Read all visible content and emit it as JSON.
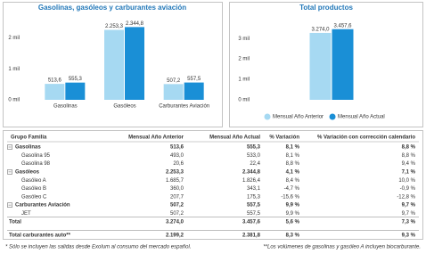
{
  "chart_data": [
    {
      "type": "bar",
      "title": "Gasolinas, gasóleos y carburantes aviación",
      "categories": [
        "Gasolinas",
        "Gasóleos",
        "Carburantes Aviación"
      ],
      "series": [
        {
          "color": "#a6d9f2",
          "values": [
            513.6,
            2253.3,
            507.2
          ],
          "value_labels": [
            "513,6",
            "2.253,3",
            "507,2"
          ]
        },
        {
          "color": "#1a8fd6",
          "values": [
            555.3,
            2344.8,
            557.5
          ],
          "value_labels": [
            "555,3",
            "2.344,8",
            "557,5"
          ]
        }
      ],
      "ylim": [
        0,
        2700
      ],
      "yticks": [
        {
          "value": 0,
          "label": "0 mil"
        },
        {
          "value": 1000,
          "label": "1 mil"
        },
        {
          "value": 2000,
          "label": "2 mil"
        }
      ]
    },
    {
      "type": "bar",
      "title": "Total productos",
      "categories": [
        null
      ],
      "series": [
        {
          "name": "Mensual Año Anterior",
          "color": "#a6d9f2",
          "values": [
            3274.0
          ],
          "value_labels": [
            "3.274,0"
          ]
        },
        {
          "name": "Mensual Año Actual",
          "color": "#1a8fd6",
          "values": [
            3457.6
          ],
          "value_labels": [
            "3.457,6"
          ]
        }
      ],
      "ylim": [
        0,
        4100
      ],
      "yticks": [
        {
          "value": 0,
          "label": "0 mil"
        },
        {
          "value": 1000,
          "label": "1 mil"
        },
        {
          "value": 2000,
          "label": "2 mil"
        },
        {
          "value": 3000,
          "label": "3 mil"
        }
      ],
      "legend": "bottom"
    }
  ],
  "table": {
    "header": [
      "Grupo Familia",
      "Mensual Año Anterior",
      "Mensual Año Actual",
      "% Variación",
      "% Variación con corrección calendario"
    ],
    "rows": [
      {
        "style": "group",
        "cells": [
          "Gasolinas",
          "513,6",
          "555,3",
          "8,1 %",
          "8,8 %"
        ]
      },
      {
        "style": "item",
        "cells": [
          "Gasolina 95",
          "493,0",
          "533,0",
          "8,1 %",
          "8,8 %"
        ]
      },
      {
        "style": "item",
        "cells": [
          "Gasolina 98",
          "20,6",
          "22,4",
          "8,8 %",
          "9,4 %"
        ]
      },
      {
        "style": "group",
        "cells": [
          "Gasóleos",
          "2.253,3",
          "2.344,8",
          "4,1 %",
          "7,1 %"
        ]
      },
      {
        "style": "item",
        "cells": [
          "Gasóleo A",
          "1.685,7",
          "1.826,4",
          "8,4 %",
          "10,0 %"
        ]
      },
      {
        "style": "item",
        "cells": [
          "Gasóleo B",
          "360,0",
          "343,1",
          "-4,7 %",
          "-0,9 %"
        ]
      },
      {
        "style": "item",
        "cells": [
          "Gasóleo C",
          "207,7",
          "175,3",
          "-15,6 %",
          "-12,8 %"
        ]
      },
      {
        "style": "group",
        "cells": [
          "Carburantes Aviación",
          "507,2",
          "557,5",
          "9,9 %",
          "9,7 %"
        ]
      },
      {
        "style": "item",
        "cells": [
          "JET",
          "507,2",
          "557,5",
          "9,9 %",
          "9,7 %"
        ]
      },
      {
        "style": "total",
        "cells": [
          "Total",
          "3.274,0",
          "3.457,6",
          "5,6 %",
          "7,3 %"
        ]
      },
      {
        "style": "grand",
        "cells": [
          "Total carburantes auto**",
          "2.199,2",
          "2.381,8",
          "8,3 %",
          "9,3 %"
        ]
      }
    ]
  },
  "footnotes": [
    "* Sólo se incluyen las salidas desde Exolum al consumo del mercado español.",
    "**Los volúmenes de gasolinas y gasóleo A incluyen biocarburante."
  ]
}
